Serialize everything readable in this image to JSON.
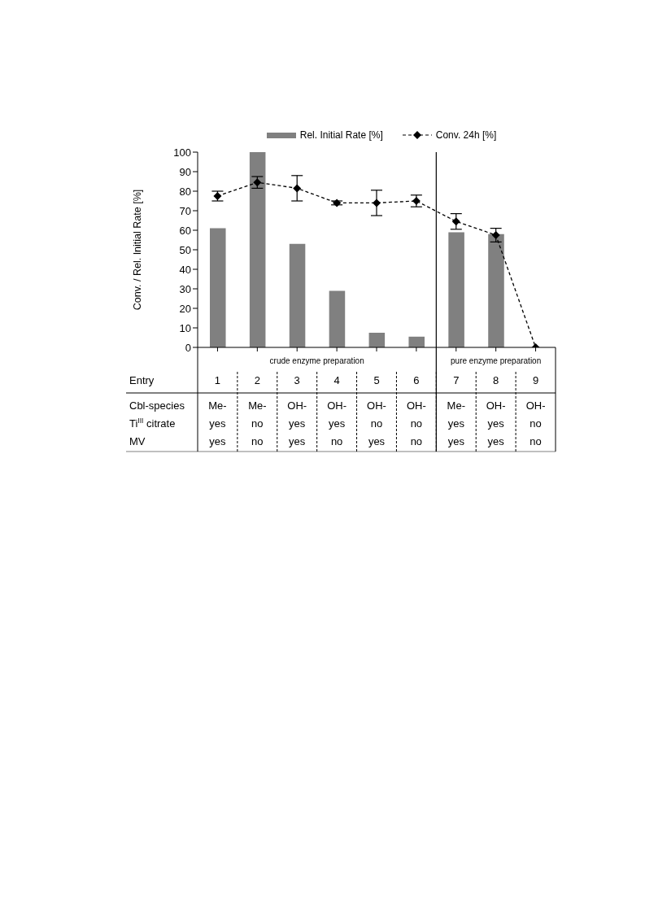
{
  "chart_data": {
    "type": "bar",
    "ylabel": "Conv. / Rel. Initial Rate [%]",
    "xlabel": "Entry",
    "categories": [
      "1",
      "2",
      "3",
      "4",
      "5",
      "6",
      "7",
      "8",
      "9"
    ],
    "series": [
      {
        "name": "Rel. Initial Rate [%]",
        "color": "#808080",
        "values": [
          61,
          100,
          53,
          29,
          7.5,
          5.5,
          59,
          58,
          null
        ]
      },
      {
        "name": "Conv. 24h [%]",
        "type": "line",
        "color": "#000000",
        "line_style": "dashed",
        "marker": "diamond",
        "values": [
          77.5,
          84.5,
          81.5,
          74,
          74,
          75,
          64.5,
          57.5,
          0
        ],
        "errors": [
          2.5,
          3,
          6.5,
          1,
          6.5,
          3,
          4,
          3.5,
          null
        ]
      }
    ],
    "ylim": [
      0,
      100
    ],
    "yticks": [
      0,
      10,
      20,
      30,
      40,
      50,
      60,
      70,
      80,
      90,
      100
    ],
    "grid": false,
    "legend": "top",
    "annotations": [
      "crude enzyme preparation",
      "pure enzyme preparation",
      "Cbl-species",
      "Me-",
      "Me-",
      "OH-",
      "OH-",
      "OH-",
      "OH-",
      "Me-",
      "OH-",
      "OH-",
      "Ti$^{III}$ citrate",
      "yes",
      "no",
      "yes",
      "yes",
      "no",
      "no",
      "yes",
      "yes",
      "no",
      "MV",
      "yes",
      "no",
      "yes",
      "no",
      "yes",
      "no",
      "yes",
      "yes",
      "no"
    ]
  }
}
